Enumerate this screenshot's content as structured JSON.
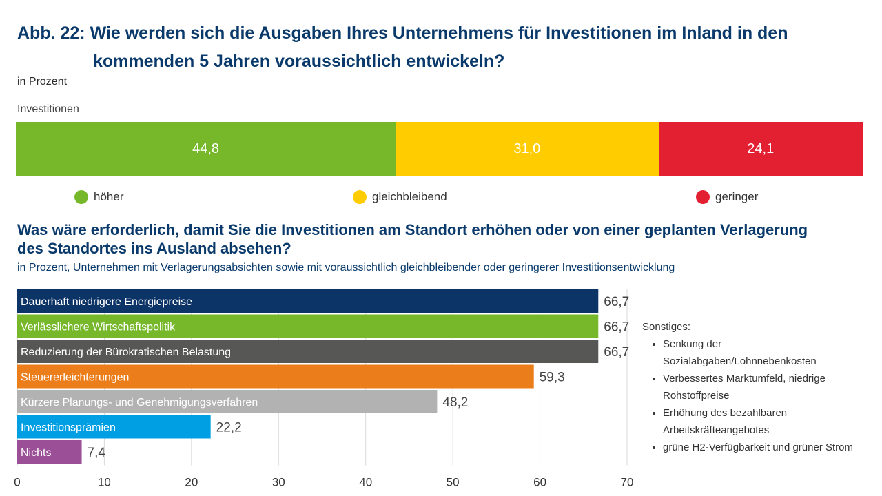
{
  "figure": {
    "title_line1": "Abb. 22: Wie werden sich die Ausgaben Ihres Unternehmens für Investitionen im Inland in den",
    "title_line2": "kommenden 5 Jahren voraussichtlich entwickeln?",
    "unit": "in Prozent"
  },
  "chart_data": [
    {
      "type": "bar",
      "orientation": "horizontal-stacked",
      "category_label": "Investitionen",
      "series": [
        {
          "name": "höher",
          "value": 44.8,
          "label": "44,8",
          "color": "#76b82a"
        },
        {
          "name": "gleichbleibend",
          "value": 31.0,
          "label": "31,0",
          "color": "#ffcc00"
        },
        {
          "name": "geringer",
          "value": 24.1,
          "label": "24,1",
          "color": "#e32031"
        }
      ],
      "legend_position": "bottom"
    },
    {
      "type": "bar",
      "orientation": "horizontal",
      "title_line1": "Was wäre erforderlich, damit Sie die Investitionen am Standort erhöhen oder von einer geplanten Verlagerung",
      "title_line2": "des Standortes ins Ausland absehen?",
      "subtitle": "in Prozent, Unternehmen mit Verlagerungsabsichten sowie mit voraussichtlich gleichbleibender oder geringerer Investitionsentwicklung",
      "categories": [
        "Dauerhaft niedrigere Energiepreise",
        "Verlässlichere Wirtschaftspolitik",
        "Reduzierung der Bürokratischen Belastung",
        "Steuererleichterungen",
        "Kürzere Planungs- und Genehmigungsverfahren",
        "Investitionsprämien",
        "Nichts"
      ],
      "values": [
        66.7,
        66.7,
        66.7,
        59.3,
        48.2,
        22.2,
        7.4
      ],
      "value_labels": [
        "66,7",
        "66,7",
        "66,7",
        "59,3",
        "48,2",
        "22,2",
        "7,4"
      ],
      "colors": [
        "#0d3466",
        "#76b82a",
        "#575756",
        "#ec7d1b",
        "#b2b2b2",
        "#009fe3",
        "#9b4f96"
      ],
      "xlim": [
        0,
        70
      ],
      "xticks": [
        0,
        10,
        20,
        30,
        40,
        50,
        60,
        70
      ],
      "grid": true
    }
  ],
  "notes": {
    "heading": "Sonstiges:",
    "items": [
      "Senkung der Sozialabgaben/Lohnnebenkosten",
      "Verbessertes Marktumfeld, niedrige Rohstoffpreise",
      "Erhöhung des bezahlbaren Arbeitskräfteangebotes",
      "grüne H2-Verfügbarkeit und grüner Strom"
    ]
  }
}
